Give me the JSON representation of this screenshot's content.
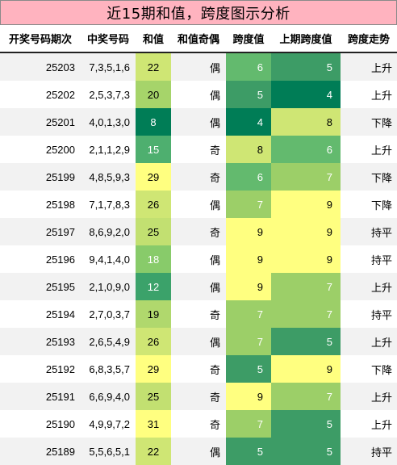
{
  "title": "近15期和值，跨度图示分析",
  "headers": [
    "开奖号码期次",
    "中奖号码",
    "和值",
    "和值奇偶",
    "跨度值",
    "上期跨度值",
    "跨度走势"
  ],
  "rows": [
    {
      "period": "25203",
      "numbers": "7,3,5,1,6",
      "sum": "22",
      "parity": "偶",
      "span": "6",
      "prev_span": "5",
      "trend": "上升"
    },
    {
      "period": "25202",
      "numbers": "2,5,3,7,3",
      "sum": "20",
      "parity": "偶",
      "span": "5",
      "prev_span": "4",
      "trend": "上升"
    },
    {
      "period": "25201",
      "numbers": "4,0,1,3,0",
      "sum": "8",
      "parity": "偶",
      "span": "4",
      "prev_span": "8",
      "trend": "下降"
    },
    {
      "period": "25200",
      "numbers": "2,1,1,2,9",
      "sum": "15",
      "parity": "奇",
      "span": "8",
      "prev_span": "6",
      "trend": "上升"
    },
    {
      "period": "25199",
      "numbers": "4,8,5,9,3",
      "sum": "29",
      "parity": "奇",
      "span": "6",
      "prev_span": "7",
      "trend": "下降"
    },
    {
      "period": "25198",
      "numbers": "7,1,7,8,3",
      "sum": "26",
      "parity": "偶",
      "span": "7",
      "prev_span": "9",
      "trend": "下降"
    },
    {
      "period": "25197",
      "numbers": "8,6,9,2,0",
      "sum": "25",
      "parity": "奇",
      "span": "9",
      "prev_span": "9",
      "trend": "持平"
    },
    {
      "period": "25196",
      "numbers": "9,4,1,4,0",
      "sum": "18",
      "parity": "偶",
      "span": "9",
      "prev_span": "9",
      "trend": "持平"
    },
    {
      "period": "25195",
      "numbers": "2,1,0,9,0",
      "sum": "12",
      "parity": "偶",
      "span": "9",
      "prev_span": "7",
      "trend": "上升"
    },
    {
      "period": "25194",
      "numbers": "2,7,0,3,7",
      "sum": "19",
      "parity": "奇",
      "span": "7",
      "prev_span": "7",
      "trend": "持平"
    },
    {
      "period": "25193",
      "numbers": "2,6,5,4,9",
      "sum": "26",
      "parity": "偶",
      "span": "7",
      "prev_span": "5",
      "trend": "上升"
    },
    {
      "period": "25192",
      "numbers": "6,8,3,5,7",
      "sum": "29",
      "parity": "奇",
      "span": "5",
      "prev_span": "9",
      "trend": "下降"
    },
    {
      "period": "25191",
      "numbers": "6,6,9,4,0",
      "sum": "25",
      "parity": "奇",
      "span": "9",
      "prev_span": "7",
      "trend": "上升"
    },
    {
      "period": "25190",
      "numbers": "4,9,9,7,2",
      "sum": "31",
      "parity": "奇",
      "span": "7",
      "prev_span": "5",
      "trend": "上升"
    },
    {
      "period": "25189",
      "numbers": "5,5,6,5,1",
      "sum": "22",
      "parity": "偶",
      "span": "5",
      "prev_span": "5",
      "trend": "持平"
    }
  ],
  "sum_colors": [
    "#cfe674",
    "#a6d46a",
    "#007d56",
    "#4eaf6f",
    "#ffff80",
    "#cfe674",
    "#c2e071",
    "#88cb6a",
    "#3ba26a",
    "#b0d86d",
    "#cfe674",
    "#ffff80",
    "#c2e071",
    "#ffff80",
    "#cfe674"
  ],
  "span_colors": [
    "#63ba6e",
    "#3d9c66",
    "#007d56",
    "#cfe674",
    "#63ba6e",
    "#9ccf68",
    "#ffff80",
    "#ffff80",
    "#ffff80",
    "#9ccf68",
    "#9ccf68",
    "#3d9c66",
    "#ffff80",
    "#9ccf68",
    "#3d9c66"
  ],
  "prev_span_colors": [
    "#3d9c66",
    "#007d56",
    "#cfe674",
    "#63ba6e",
    "#9ccf68",
    "#ffff80",
    "#ffff80",
    "#ffff80",
    "#9ccf68",
    "#9ccf68",
    "#3d9c66",
    "#ffff80",
    "#9ccf68",
    "#3d9c66",
    "#3d9c66"
  ]
}
